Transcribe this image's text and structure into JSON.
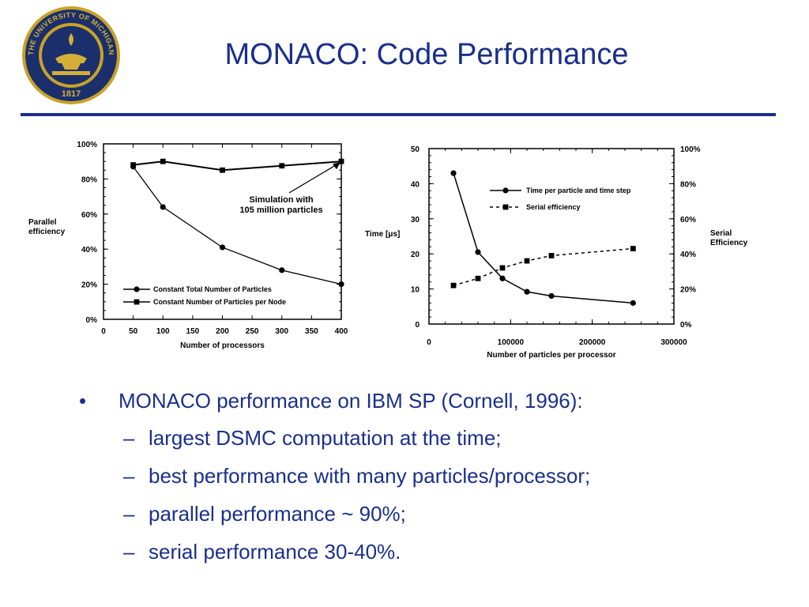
{
  "title": "MONACO: Code Performance",
  "seal": {
    "icon": "university-of-michigan-seal",
    "text": "THE UNIVERSITY OF MICHIGAN",
    "year": "1817",
    "colors": {
      "outer": "#c9a227",
      "inner": "#1a2f6b",
      "lamp": "#d4af37"
    }
  },
  "colors": {
    "title": "#1a2f8c",
    "rule": "#1a2f8c",
    "bullets": "#1a2f8c"
  },
  "chart_data": [
    {
      "type": "line",
      "xlabel": "Number of processors",
      "ylabel": "Parallel\nefficiency",
      "xticks": [
        0,
        50,
        100,
        150,
        200,
        250,
        300,
        350,
        400
      ],
      "xlim": [
        0,
        400
      ],
      "yticks": [
        "0%",
        "20%",
        "40%",
        "60%",
        "80%",
        "100%"
      ],
      "ylim": [
        0,
        100
      ],
      "legend_position": "bottom-left",
      "series": [
        {
          "name": "Constant Total Number of Particles",
          "marker": "circle",
          "x": [
            50,
            100,
            200,
            300,
            400
          ],
          "y": [
            87,
            64,
            41,
            28,
            20
          ]
        },
        {
          "name": "Constant Number of Particles per Node",
          "marker": "square",
          "x": [
            50,
            100,
            200,
            300,
            400
          ],
          "y": [
            88,
            90,
            85,
            87.5,
            90
          ]
        }
      ],
      "annotation": {
        "text": [
          "Simulation  with",
          "105  million  particles"
        ]
      }
    },
    {
      "type": "line",
      "xlabel": "Number of particles per processor",
      "ylabel": "Time [μs]",
      "y2label": "Serial\nEfficiency",
      "xticks": [
        0,
        100000,
        200000,
        300000
      ],
      "xlim": [
        0,
        300000
      ],
      "yticks": [
        0,
        10,
        20,
        30,
        40,
        50
      ],
      "ylim": [
        0,
        50
      ],
      "y2ticks": [
        "0%",
        "20%",
        "40%",
        "60%",
        "80%",
        "100%"
      ],
      "y2lim": [
        0,
        100
      ],
      "legend_position": "top-right",
      "series": [
        {
          "name": "Time per particle and time step",
          "marker": "circle",
          "axis": "left",
          "x": [
            30000,
            60000,
            90000,
            120000,
            150000,
            250000
          ],
          "y": [
            43,
            20.5,
            13,
            9.2,
            8,
            6
          ]
        },
        {
          "name": "Serial efficiency",
          "marker": "square",
          "axis": "right",
          "style": "dashed",
          "x": [
            30000,
            60000,
            90000,
            120000,
            150000,
            250000
          ],
          "y": [
            22,
            26,
            32,
            36,
            39,
            43
          ]
        }
      ]
    }
  ],
  "bullets": {
    "main": {
      "marker": "•",
      "text": "MONACO performance on IBM SP (Cornell, 1996):"
    },
    "subs": [
      {
        "marker": "–",
        "text": "largest DSMC computation at the time;"
      },
      {
        "marker": "–",
        "text": "best performance with many particles/processor;"
      },
      {
        "marker": "–",
        "text": "parallel performance ~ 90%;"
      },
      {
        "marker": "–",
        "text": "serial performance 30-40%."
      }
    ]
  }
}
